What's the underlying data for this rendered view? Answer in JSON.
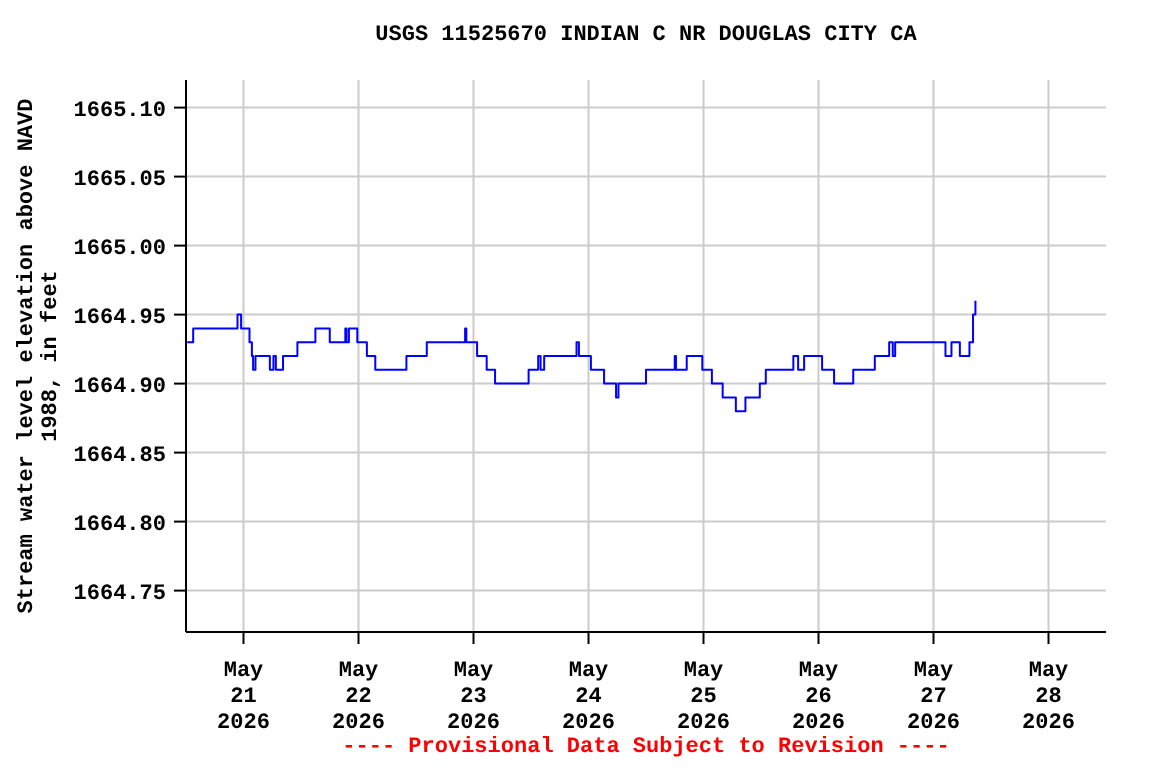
{
  "chart_data": {
    "type": "step",
    "title": "USGS 11525670 INDIAN C NR DOUGLAS CITY CA",
    "ylabel": "Stream water level elevation above NAVD 1988, in feet",
    "annotations": [
      "---- Provisional Data Subject to Revision ----"
    ],
    "x": [
      "2026-05-20T12:15",
      "2026-05-20T13:30",
      "2026-05-20T22:45",
      "2026-05-20T23:30",
      "2026-05-21T01:15",
      "2026-05-21T01:45",
      "2026-05-21T02:00",
      "2026-05-21T02:30",
      "2026-05-21T05:30",
      "2026-05-21T06:15",
      "2026-05-21T06:45",
      "2026-05-21T08:15",
      "2026-05-21T11:15",
      "2026-05-21T15:00",
      "2026-05-21T18:00",
      "2026-05-21T21:15",
      "2026-05-21T21:30",
      "2026-05-21T22:00",
      "2026-05-21T23:45",
      "2026-05-22T01:45",
      "2026-05-22T03:30",
      "2026-05-22T10:00",
      "2026-05-22T14:15",
      "2026-05-22T22:15",
      "2026-05-22T22:30",
      "2026-05-23T00:45",
      "2026-05-23T02:45",
      "2026-05-23T04:30",
      "2026-05-23T11:30",
      "2026-05-23T13:30",
      "2026-05-23T14:00",
      "2026-05-23T14:45",
      "2026-05-23T21:30",
      "2026-05-23T22:00",
      "2026-05-24T00:30",
      "2026-05-24T03:15",
      "2026-05-24T05:45",
      "2026-05-24T06:15",
      "2026-05-24T12:00",
      "2026-05-24T18:00",
      "2026-05-24T18:15",
      "2026-05-24T20:30",
      "2026-05-24T23:45",
      "2026-05-25T01:45",
      "2026-05-25T04:00",
      "2026-05-25T06:45",
      "2026-05-25T08:45",
      "2026-05-25T11:45",
      "2026-05-25T13:00",
      "2026-05-25T18:45",
      "2026-05-25T19:45",
      "2026-05-25T21:00",
      "2026-05-26T00:45",
      "2026-05-26T03:15",
      "2026-05-26T07:15",
      "2026-05-26T11:45",
      "2026-05-26T14:45",
      "2026-05-26T15:30",
      "2026-05-26T16:00",
      "2026-05-27T02:30",
      "2026-05-27T03:45",
      "2026-05-27T05:30",
      "2026-05-27T07:30",
      "2026-05-27T08:15",
      "2026-05-27T08:45"
    ],
    "series": [
      {
        "color": "#0000ff",
        "values": [
          1664.93,
          1664.94,
          1664.95,
          1664.94,
          1664.93,
          1664.92,
          1664.91,
          1664.92,
          1664.91,
          1664.92,
          1664.91,
          1664.92,
          1664.93,
          1664.94,
          1664.93,
          1664.94,
          1664.93,
          1664.94,
          1664.93,
          1664.92,
          1664.91,
          1664.92,
          1664.93,
          1664.94,
          1664.93,
          1664.92,
          1664.91,
          1664.9,
          1664.91,
          1664.92,
          1664.91,
          1664.92,
          1664.93,
          1664.92,
          1664.91,
          1664.9,
          1664.89,
          1664.9,
          1664.91,
          1664.92,
          1664.91,
          1664.92,
          1664.91,
          1664.9,
          1664.89,
          1664.88,
          1664.89,
          1664.9,
          1664.91,
          1664.92,
          1664.91,
          1664.92,
          1664.91,
          1664.9,
          1664.91,
          1664.92,
          1664.93,
          1664.92,
          1664.93,
          1664.92,
          1664.93,
          1664.92,
          1664.93,
          1664.95,
          1664.96
        ]
      }
    ],
    "xlim": [
      "2026-05-20T12:00",
      "2026-05-28T12:00"
    ],
    "xticks": [
      {
        "value": "2026-05-21",
        "label": "May\n21\n2026"
      },
      {
        "value": "2026-05-22",
        "label": "May\n22\n2026"
      },
      {
        "value": "2026-05-23",
        "label": "May\n23\n2026"
      },
      {
        "value": "2026-05-24",
        "label": "May\n24\n2026"
      },
      {
        "value": "2026-05-25",
        "label": "May\n25\n2026"
      },
      {
        "value": "2026-05-26",
        "label": "May\n26\n2026"
      },
      {
        "value": "2026-05-27",
        "label": "May\n27\n2026"
      },
      {
        "value": "2026-05-28",
        "label": "May\n28\n2026"
      }
    ],
    "ylim": [
      1664.72,
      1665.12
    ],
    "yticks": [
      1664.75,
      {
        "value": 1664.8,
        "label": "1664.80"
      },
      1664.85,
      {
        "value": 1664.9,
        "label": "1664.90"
      },
      1664.95,
      {
        "value": 1665.0,
        "label": "1665.00"
      },
      1665.05,
      {
        "value": 1665.1,
        "label": "1665.10"
      }
    ],
    "grid": true,
    "line_style": "solid"
  }
}
